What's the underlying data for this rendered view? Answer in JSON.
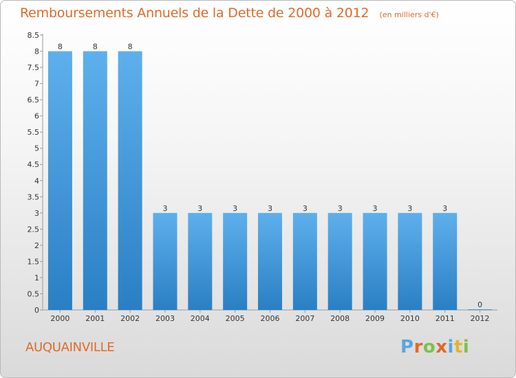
{
  "header": {
    "title": "Remboursements Annuels de la Dette de 2000 à 2012",
    "subtitle": "(en milliers d'€)"
  },
  "footer": {
    "commune": "AUQUAINVILLE",
    "brand": "Proxiti"
  },
  "colors": {
    "title": "#e06a28",
    "bar_light": "#5eb0ec",
    "bar_dark": "#2a7fc4",
    "brand_letters": [
      "#5aa6e0",
      "#e56a2a",
      "#7cc24a",
      "#e06a28",
      "#5aa6e0",
      "#e3b52a",
      "#7cc24a"
    ]
  },
  "chart_data": {
    "type": "bar",
    "categories": [
      "2000",
      "2001",
      "2002",
      "2003",
      "2004",
      "2005",
      "2006",
      "2007",
      "2008",
      "2009",
      "2010",
      "2011",
      "2012"
    ],
    "values": [
      8,
      8,
      8,
      3,
      3,
      3,
      3,
      3,
      3,
      3,
      3,
      3,
      0
    ],
    "value_labels": [
      "8",
      "8",
      "8",
      "3",
      "3",
      "3",
      "3",
      "3",
      "3",
      "3",
      "3",
      "3",
      "0"
    ],
    "yticks": [
      "0",
      "0.5",
      "1",
      "1.5",
      "2",
      "2.5",
      "3",
      "3.5",
      "4",
      "4.5",
      "5",
      "5.5",
      "6",
      "6.5",
      "7",
      "7.5",
      "8",
      "8.5"
    ],
    "ylim": [
      0,
      8.5
    ],
    "grid": false,
    "legend": "none"
  }
}
